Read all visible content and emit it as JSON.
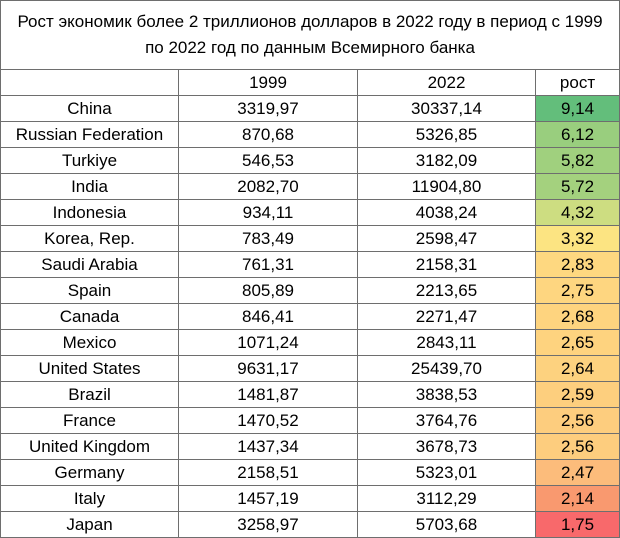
{
  "title": "Рост экономик более 2 триллионов долларов в 2022 году в период  с 1999 по 2022 год по данным Всемирного банка",
  "headers": {
    "country": "",
    "y1999": "1999",
    "y2022": "2022",
    "growth": "рост"
  },
  "rows": [
    {
      "country": "China",
      "y1999": "3319,97",
      "y2022": "30337,14",
      "growth": "9,14",
      "color": "#63be7b"
    },
    {
      "country": "Russian Federation",
      "y1999": "870,68",
      "y2022": "5326,85",
      "growth": "6,12",
      "color": "#99ce7e"
    },
    {
      "country": "Turkiye",
      "y1999": "546,53",
      "y2022": "3182,09",
      "growth": "5,82",
      "color": "#a0d07e"
    },
    {
      "country": "India",
      "y1999": "2082,70",
      "y2022": "11904,80",
      "growth": "5,72",
      "color": "#a4d17e"
    },
    {
      "country": "Indonesia",
      "y1999": "934,11",
      "y2022": "4038,24",
      "growth": "4,32",
      "color": "#cddd81"
    },
    {
      "country": "Korea, Rep.",
      "y1999": "783,49",
      "y2022": "2598,47",
      "growth": "3,32",
      "color": "#fce482"
    },
    {
      "country": "Saudi Arabia",
      "y1999": "761,31",
      "y2022": "2158,31",
      "growth": "2,83",
      "color": "#fed880"
    },
    {
      "country": "Spain",
      "y1999": "805,89",
      "y2022": "2213,65",
      "growth": "2,75",
      "color": "#fed680"
    },
    {
      "country": "Canada",
      "y1999": "846,41",
      "y2022": "2271,47",
      "growth": "2,68",
      "color": "#fed47f"
    },
    {
      "country": "Mexico",
      "y1999": "1071,24",
      "y2022": "2843,11",
      "growth": "2,65",
      "color": "#fed37f"
    },
    {
      "country": "United States",
      "y1999": "9631,17",
      "y2022": "25439,70",
      "growth": "2,64",
      "color": "#fdd27f"
    },
    {
      "country": "Brazil",
      "y1999": "1481,87",
      "y2022": "3838,53",
      "growth": "2,59",
      "color": "#fdcf7e"
    },
    {
      "country": "France",
      "y1999": "1470,52",
      "y2022": "3764,76",
      "growth": "2,56",
      "color": "#fdcd7e"
    },
    {
      "country": "United Kingdom",
      "y1999": "1437,34",
      "y2022": "3678,73",
      "growth": "2,56",
      "color": "#fdcd7e"
    },
    {
      "country": "Germany",
      "y1999": "2158,51",
      "y2022": "5323,01",
      "growth": "2,47",
      "color": "#fcbc7b"
    },
    {
      "country": "Italy",
      "y1999": "1457,19",
      "y2022": "3112,29",
      "growth": "2,14",
      "color": "#f9996f"
    },
    {
      "country": "Japan",
      "y1999": "3258,97",
      "y2022": "5703,68",
      "growth": "1,75",
      "color": "#f8696b"
    }
  ]
}
